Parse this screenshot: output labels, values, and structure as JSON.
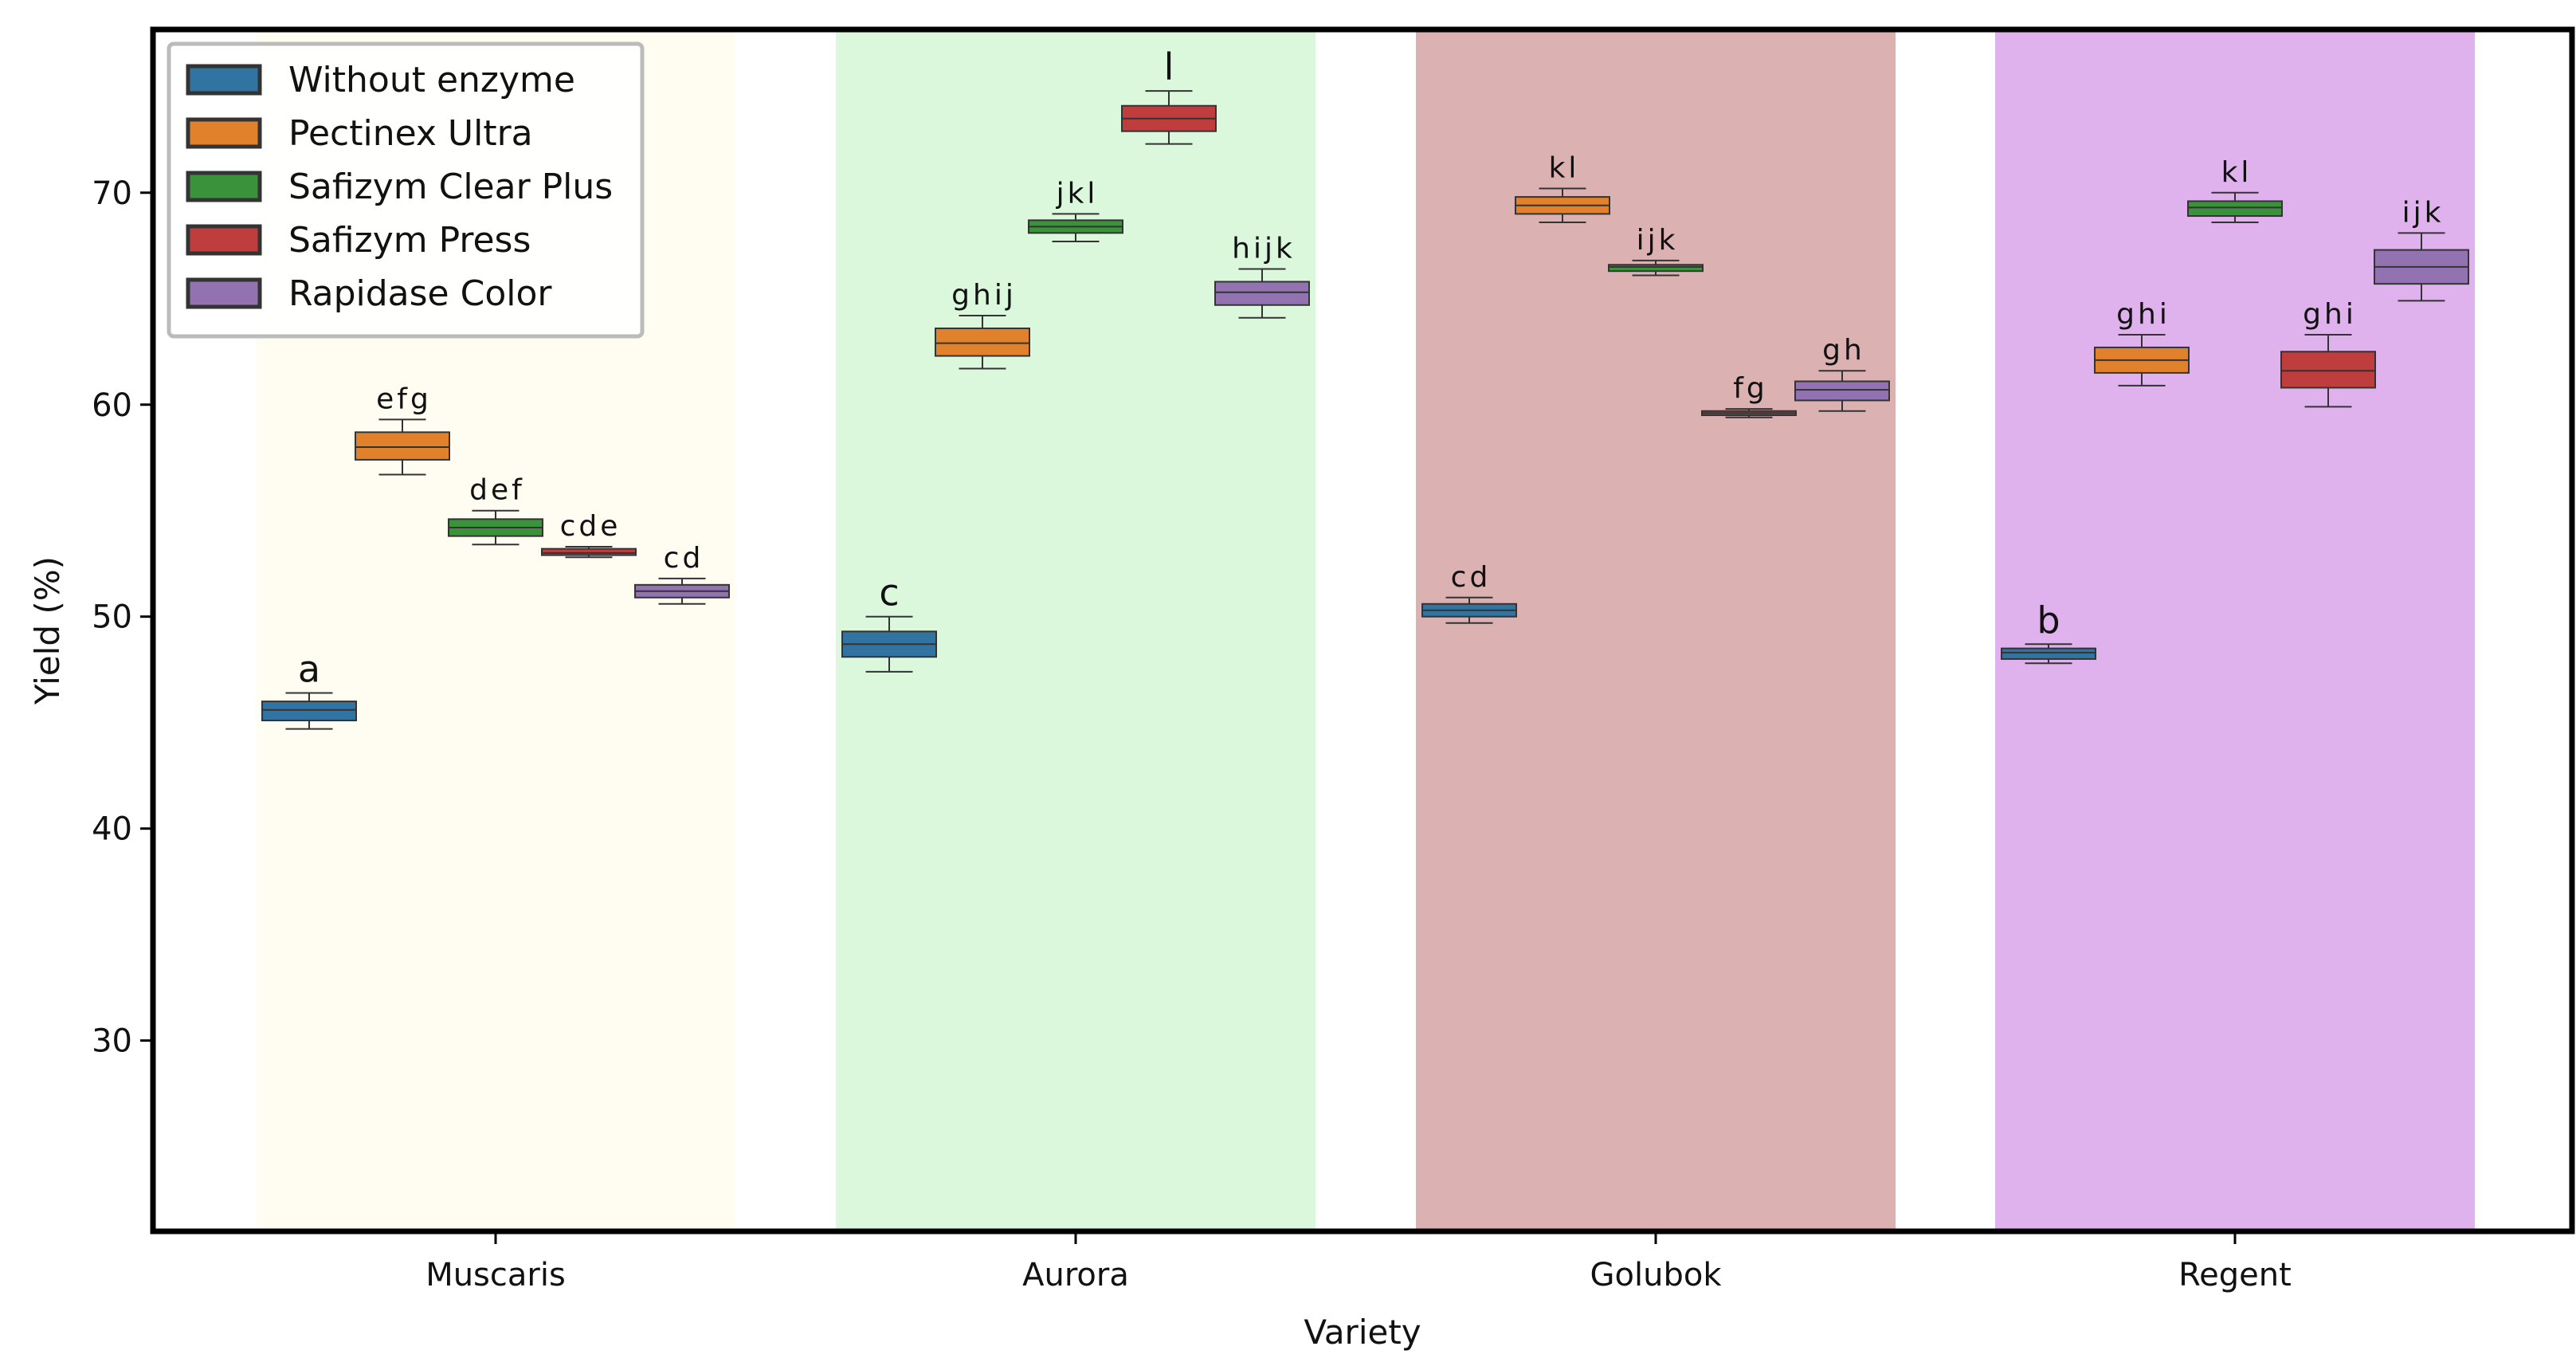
{
  "chart_data": {
    "type": "box",
    "title": "",
    "xlabel": "Variety",
    "ylabel": "Yield  (%)",
    "ylim": [
      21,
      77.7
    ],
    "yticks": [
      30,
      40,
      50,
      60,
      70
    ],
    "categories": [
      "Muscaris",
      "Aurora",
      "Golubok",
      "Regent"
    ],
    "category_bands": [
      "#fffdf2",
      "#dbf8dd",
      "#dcb1b2",
      "#dfb2ee"
    ],
    "legend_position": "top-left",
    "series": [
      {
        "name": "Without enzyme",
        "color": "#3274a1",
        "boxes": [
          {
            "category": "Muscaris",
            "whislo": 44.7,
            "q1": 45.1,
            "med": 45.6,
            "q3": 46.0,
            "whishi": 46.4,
            "letters": "a"
          },
          {
            "category": "Aurora",
            "whislo": 47.4,
            "q1": 48.1,
            "med": 48.7,
            "q3": 49.3,
            "whishi": 50.0,
            "letters": "c"
          },
          {
            "category": "Golubok",
            "whislo": 49.7,
            "q1": 50.0,
            "med": 50.3,
            "q3": 50.6,
            "whishi": 50.9,
            "letters": "cd"
          },
          {
            "category": "Regent",
            "whislo": 47.8,
            "q1": 48.0,
            "med": 48.3,
            "q3": 48.5,
            "whishi": 48.7,
            "letters": "b"
          }
        ]
      },
      {
        "name": "Pectinex Ultra",
        "color": "#e1812c",
        "boxes": [
          {
            "category": "Muscaris",
            "whislo": 56.7,
            "q1": 57.4,
            "med": 58.0,
            "q3": 58.7,
            "whishi": 59.3,
            "letters": "efg"
          },
          {
            "category": "Aurora",
            "whislo": 61.7,
            "q1": 62.3,
            "med": 62.9,
            "q3": 63.6,
            "whishi": 64.2,
            "letters": "ghij"
          },
          {
            "category": "Golubok",
            "whislo": 68.6,
            "q1": 69.0,
            "med": 69.4,
            "q3": 69.8,
            "whishi": 70.2,
            "letters": "kl"
          },
          {
            "category": "Regent",
            "whislo": 60.9,
            "q1": 61.5,
            "med": 62.1,
            "q3": 62.7,
            "whishi": 63.3,
            "letters": "ghi"
          }
        ]
      },
      {
        "name": "Safizym Clear Plus",
        "color": "#3a923a",
        "boxes": [
          {
            "category": "Muscaris",
            "whislo": 53.4,
            "q1": 53.8,
            "med": 54.2,
            "q3": 54.6,
            "whishi": 55.0,
            "letters": "def"
          },
          {
            "category": "Aurora",
            "whislo": 67.7,
            "q1": 68.1,
            "med": 68.4,
            "q3": 68.7,
            "whishi": 69.0,
            "letters": "jkl"
          },
          {
            "category": "Golubok",
            "whislo": 66.1,
            "q1": 66.3,
            "med": 66.5,
            "q3": 66.6,
            "whishi": 66.8,
            "letters": "ijk"
          },
          {
            "category": "Regent",
            "whislo": 68.6,
            "q1": 68.9,
            "med": 69.3,
            "q3": 69.6,
            "whishi": 70.0,
            "letters": "kl"
          }
        ]
      },
      {
        "name": "Safizym Press",
        "color": "#c03d3e",
        "boxes": [
          {
            "category": "Muscaris",
            "whislo": 52.8,
            "q1": 52.9,
            "med": 53.0,
            "q3": 53.2,
            "whishi": 53.3,
            "letters": "cde"
          },
          {
            "category": "Aurora",
            "whislo": 72.3,
            "q1": 72.9,
            "med": 73.5,
            "q3": 74.1,
            "whishi": 74.8,
            "letters": "l"
          },
          {
            "category": "Golubok",
            "whislo": 59.4,
            "q1": 59.5,
            "med": 59.6,
            "q3": 59.7,
            "whishi": 59.8,
            "letters": "fg"
          },
          {
            "category": "Regent",
            "whislo": 59.9,
            "q1": 60.8,
            "med": 61.6,
            "q3": 62.5,
            "whishi": 63.3,
            "letters": "ghi"
          }
        ]
      },
      {
        "name": "Rapidase Color",
        "color": "#9372b2",
        "boxes": [
          {
            "category": "Muscaris",
            "whislo": 50.6,
            "q1": 50.9,
            "med": 51.2,
            "q3": 51.5,
            "whishi": 51.8,
            "letters": "cd"
          },
          {
            "category": "Aurora",
            "whislo": 64.1,
            "q1": 64.7,
            "med": 65.3,
            "q3": 65.8,
            "whishi": 66.4,
            "letters": "hijk"
          },
          {
            "category": "Golubok",
            "whislo": 59.7,
            "q1": 60.2,
            "med": 60.7,
            "q3": 61.1,
            "whishi": 61.6,
            "letters": "gh"
          },
          {
            "category": "Regent",
            "whislo": 64.9,
            "q1": 65.7,
            "med": 66.5,
            "q3": 67.3,
            "whishi": 68.1,
            "letters": "ijk"
          }
        ]
      }
    ]
  }
}
